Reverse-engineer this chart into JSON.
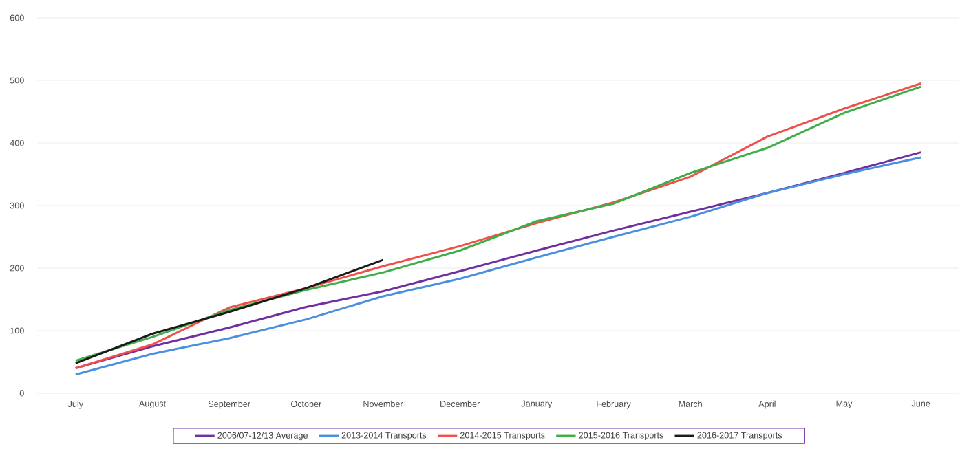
{
  "chart_data": {
    "type": "line",
    "categories": [
      "July",
      "August",
      "September",
      "October",
      "November",
      "December",
      "January",
      "February",
      "March",
      "April",
      "May",
      "June"
    ],
    "series": [
      {
        "name": "2006/07-12/13 Average",
        "color": "#7030a0",
        "values": [
          40,
          75,
          105,
          138,
          163,
          195,
          228,
          260,
          290,
          320,
          352,
          385
        ]
      },
      {
        "name": "2013-2014 Transports",
        "color": "#4a8fe0",
        "values": [
          30,
          63,
          88,
          118,
          155,
          183,
          217,
          250,
          282,
          320,
          350,
          377
        ]
      },
      {
        "name": "2014-2015 Transports",
        "color": "#f0504a",
        "values": [
          40,
          78,
          137,
          168,
          203,
          235,
          272,
          305,
          346,
          410,
          455,
          495
        ]
      },
      {
        "name": "2015-2016 Transports",
        "color": "#3fae49",
        "values": [
          52,
          90,
          133,
          165,
          193,
          228,
          275,
          303,
          352,
          392,
          448,
          490
        ]
      },
      {
        "name": "2016-2017 Transports",
        "color": "#1a1a1a",
        "values": [
          48,
          95,
          130,
          168,
          213,
          null,
          null,
          null,
          null,
          null,
          null,
          null
        ]
      }
    ],
    "ylim": [
      0,
      600
    ],
    "yticks": [
      0,
      100,
      200,
      300,
      400,
      500,
      600
    ],
    "grid": "y",
    "legend": "bottom",
    "marker": "none",
    "line_style": "solid"
  }
}
